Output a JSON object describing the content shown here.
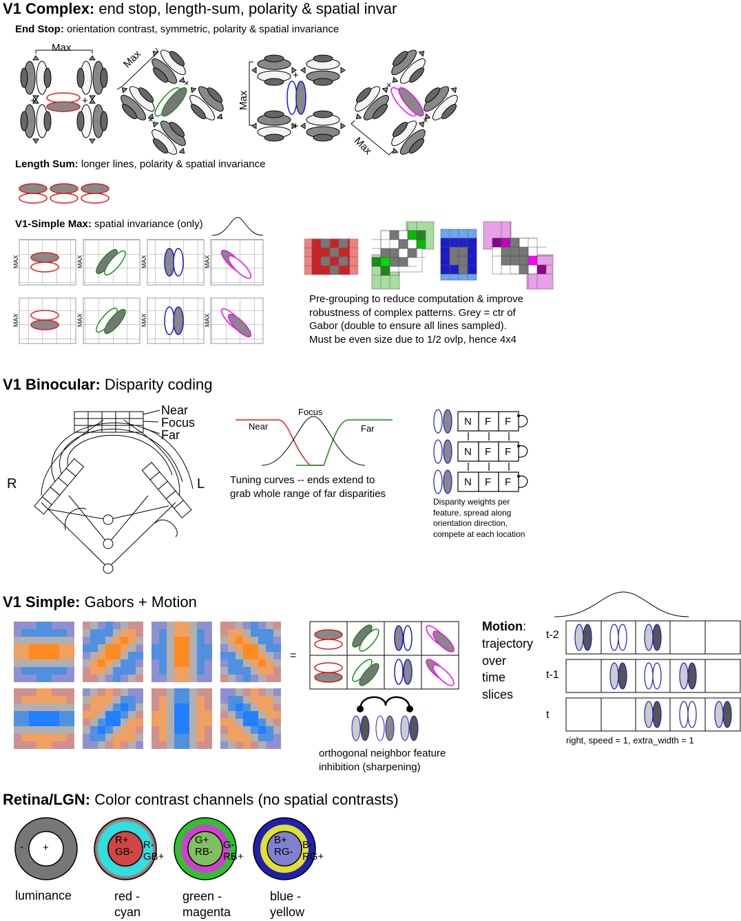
{
  "complex": {
    "title_bold": "V1 Complex:",
    "title_rest": " end stop, length-sum, polarity & spatial invar",
    "endstop_bold": "End Stop:",
    "endstop_rest": " orientation contrast, symmetric, polarity & spatial invariance",
    "max_label": "Max",
    "plus": "+",
    "times": "×",
    "lengthsum_bold": "Length Sum:",
    "lengthsum_rest": " longer lines, polarity & spatial invariance",
    "simplemax_bold": "V1-Simple Max:",
    "simplemax_rest": " spatial invariance (only)",
    "grid_max_label": "MAX",
    "pregroup_note": "Pre-grouping to reduce computation & improve\nrobustness of complex patterns.  Grey = ctr of\nGabor (double to ensure all lines sampled).\nMust be even size due to 1/2 ovlp, hence 4x4"
  },
  "binocular": {
    "title_bold": "V1 Binocular:",
    "title_rest": " Disparity coding",
    "near": "Near",
    "focus": "Focus",
    "far": "Far",
    "eye_r": "R",
    "eye_l": "L",
    "curve_near": "Near",
    "curve_focus": "Focus",
    "curve_far": "Far",
    "tuning_note": "Tuning curves -- ends extend to\ngrab whole range of far disparities",
    "cells": [
      "N",
      "F",
      "F"
    ],
    "weights_note": "Disparity weights per\nfeature, spread along\norientation direction,\ncompete at each location"
  },
  "simple": {
    "title_bold": "V1 Simple:",
    "title_rest": " Gabors + Motion",
    "equals": "=",
    "inhibition_note": "orthogonal neighbor feature\ninhibition (sharpening)",
    "motion_bold": "Motion",
    "motion_rest": ":\ntrajectory\nover\ntime\nslices",
    "rows": [
      "t-2",
      "t-1",
      "t"
    ],
    "motion_caption": "right, speed = 1, extra_width = 1"
  },
  "retina": {
    "title_bold": "Retina/LGN:",
    "title_rest": " Color contrast channels (no spatial contrasts)",
    "lum_center": "+",
    "lum_surround": "-",
    "channels": [
      {
        "center": "R+\nGB-",
        "surround": "R-\nGB+",
        "label": "red -\ncyan"
      },
      {
        "center": "G+\nRB-",
        "surround": "G-\nRB+",
        "label": "green -\nmagenta"
      },
      {
        "center": "B+\nRG-",
        "surround": "B-\nRG+",
        "label": "blue -\nyellow"
      }
    ],
    "lum_label": "luminance"
  },
  "colors": {
    "red": "#e41a1c",
    "green": "#1a8a1a",
    "blue": "#1a1acc",
    "magenta": "#ff00ff",
    "grey": "#777777"
  }
}
